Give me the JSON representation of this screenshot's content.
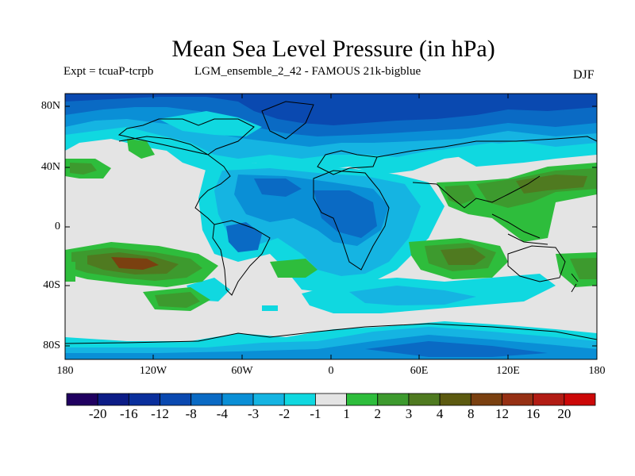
{
  "title": "Mean Sea Level Pressure (in hPa)",
  "expt_label": "Expt = tcuaP-tcrpb",
  "run_label": "LGM_ensemble_2_42 - FAMOUS 21k-bigblue",
  "season": "DJF",
  "lat_ticks": [
    "80N",
    "40N",
    "0",
    "40S",
    "80S"
  ],
  "lon_ticks": [
    "180",
    "120W",
    "60W",
    "0",
    "60E",
    "120E",
    "180"
  ],
  "colorbar": {
    "colors": [
      "#200060",
      "#0c1c86",
      "#0a2f9c",
      "#0a49b0",
      "#0a6ac4",
      "#0a8fd6",
      "#15b4e2",
      "#10d8e0",
      "#e4e4e4",
      "#2ebd3c",
      "#3d9a2e",
      "#4f7a20",
      "#5c5a10",
      "#7a4010",
      "#963014",
      "#b21c14",
      "#cc0808"
    ],
    "labels": [
      "-20",
      "-16",
      "-12",
      "-8",
      "-4",
      "-3",
      "-2",
      "-1",
      "1",
      "2",
      "3",
      "4",
      "8",
      "12",
      "16",
      "20"
    ]
  },
  "map_colors": {
    "neutral": "#e4e4e4",
    "cyan": "#10d8e0",
    "lightblue": "#15b4e2",
    "blue": "#0a8fd6",
    "midblue": "#0a6ac4",
    "deepblue": "#0a49b0",
    "navy": "#0a2f9c",
    "green": "#2ebd3c",
    "darkgreen": "#3d9a2e",
    "olive": "#4f7a20",
    "brown": "#7a4010"
  }
}
